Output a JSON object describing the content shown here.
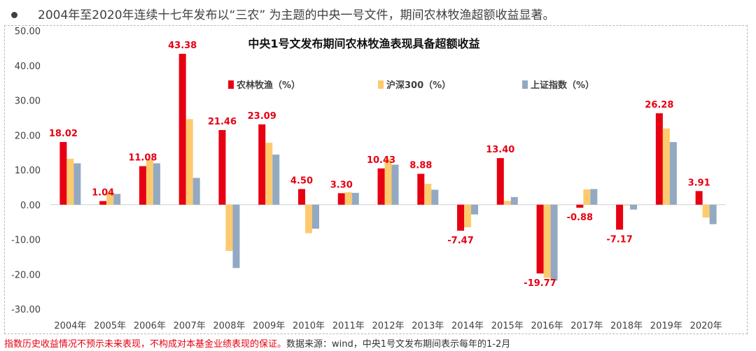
{
  "header": {
    "text": "2004年至2020年连续十七年发布以“三农” 为主题的中央一号文件，期间农林牧渔超额收益显著。"
  },
  "footer": {
    "disclaimer": "指数历史收益情况不预示未来表现，不构成对本基金业绩表现的保证。",
    "source": "数据来源：wind，中央1号文发布期间表示每年的1-2月"
  },
  "colors": {
    "series_1": "#e60012",
    "series_2": "#fdca6e",
    "series_3": "#93a9c2",
    "label": "#e60012",
    "axis_text": "#404040"
  },
  "chart_data": {
    "type": "bar",
    "title": "中央1号文发布期间农林牧渔表现具备超额收益",
    "xlabel": "",
    "ylabel": "",
    "ylim": [
      -30,
      50
    ],
    "yticks": [
      "50.00",
      "40.00",
      "30.00",
      "20.00",
      "10.00",
      "0.00",
      "-10.00",
      "-20.00",
      "-30.00"
    ],
    "ytick_values": [
      50,
      40,
      30,
      20,
      10,
      0,
      -10,
      -20,
      -30
    ],
    "categories": [
      "2004年",
      "2005年",
      "2006年",
      "2007年",
      "2008年",
      "2009年",
      "2010年",
      "2011年",
      "2012年",
      "2013年",
      "2014年",
      "2015年",
      "2016年",
      "2017年",
      "2018年",
      "2019年",
      "2020年"
    ],
    "legend_position": "top-center",
    "grid": false,
    "series": [
      {
        "name": "农林牧渔（%）",
        "values": [
          18.02,
          1.04,
          11.08,
          43.38,
          21.46,
          23.09,
          4.5,
          3.3,
          10.43,
          8.88,
          -7.47,
          13.4,
          -19.77,
          -0.88,
          -7.17,
          26.28,
          3.91
        ]
      },
      {
        "name": "沪深300（%）",
        "values": [
          13.2,
          3.8,
          13.0,
          24.6,
          -13.3,
          17.8,
          -8.2,
          3.6,
          13.2,
          6.0,
          -6.5,
          1.1,
          -21.0,
          4.4,
          -0.2,
          21.9,
          -3.7
        ]
      },
      {
        "name": "上证指数（%）",
        "values": [
          11.9,
          3.1,
          11.9,
          7.7,
          -18.2,
          14.4,
          -6.9,
          3.4,
          11.5,
          4.3,
          -2.8,
          2.2,
          -21.8,
          4.5,
          -1.4,
          18.0,
          -5.6
        ]
      }
    ],
    "data_labels": [
      "18.02",
      "1.04",
      "11.08",
      "43.38",
      "21.46",
      "23.09",
      "4.50",
      "3.30",
      "10.43",
      "8.88",
      "-7.47",
      "13.40",
      "-19.77",
      "-0.88",
      "-7.17",
      "26.28",
      "3.91"
    ]
  }
}
